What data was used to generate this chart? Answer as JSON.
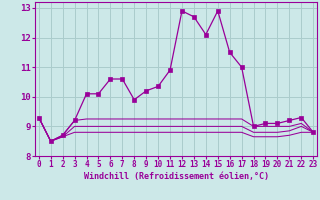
{
  "xlabel": "Windchill (Refroidissement éolien,°C)",
  "bg_color": "#cce8e8",
  "grid_color": "#aacccc",
  "line_color": "#990099",
  "x_hours": [
    0,
    1,
    2,
    3,
    4,
    5,
    6,
    7,
    8,
    9,
    10,
    11,
    12,
    13,
    14,
    15,
    16,
    17,
    18,
    19,
    20,
    21,
    22,
    23
  ],
  "series": [
    [
      9.3,
      8.5,
      8.7,
      9.2,
      10.1,
      10.1,
      10.6,
      10.6,
      9.9,
      10.2,
      10.35,
      10.9,
      12.9,
      12.7,
      12.1,
      12.9,
      11.5,
      11.0,
      9.0,
      9.1,
      9.1,
      9.2,
      9.3,
      8.8
    ],
    [
      9.3,
      8.5,
      8.7,
      9.2,
      9.25,
      9.25,
      9.25,
      9.25,
      9.25,
      9.25,
      9.25,
      9.25,
      9.25,
      9.25,
      9.25,
      9.25,
      9.25,
      9.25,
      9.0,
      9.0,
      9.0,
      9.0,
      9.1,
      8.8
    ],
    [
      9.3,
      8.5,
      8.65,
      9.0,
      9.0,
      9.0,
      9.0,
      9.0,
      9.0,
      9.0,
      9.0,
      9.0,
      9.0,
      9.0,
      9.0,
      9.0,
      9.0,
      9.0,
      8.8,
      8.8,
      8.8,
      8.85,
      9.0,
      8.8
    ],
    [
      9.3,
      8.5,
      8.65,
      8.8,
      8.8,
      8.8,
      8.8,
      8.8,
      8.8,
      8.8,
      8.8,
      8.8,
      8.8,
      8.8,
      8.8,
      8.8,
      8.8,
      8.8,
      8.65,
      8.65,
      8.65,
      8.7,
      8.8,
      8.8
    ]
  ],
  "ylim": [
    8.0,
    13.2
  ],
  "yticks": [
    8,
    9,
    10,
    11,
    12,
    13
  ],
  "xticks": [
    0,
    1,
    2,
    3,
    4,
    5,
    6,
    7,
    8,
    9,
    10,
    11,
    12,
    13,
    14,
    15,
    16,
    17,
    18,
    19,
    20,
    21,
    22,
    23
  ],
  "xlabel_fontsize": 6.0,
  "ytick_fontsize": 6.5,
  "xtick_fontsize": 5.5
}
